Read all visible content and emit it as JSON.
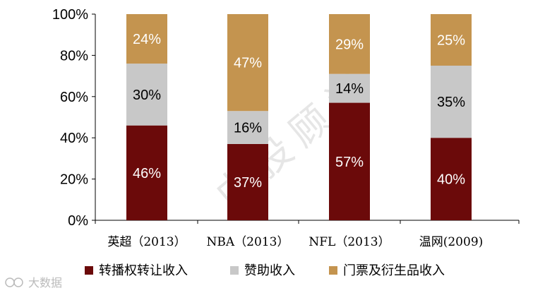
{
  "chart_data": {
    "type": "bar",
    "stacked": true,
    "categories": [
      "英超（2013）",
      "NBA（2013）",
      "NFL（2013）",
      "温网(2009)"
    ],
    "series": [
      {
        "name": "转播权转让收入",
        "color": "#6b0a0a",
        "label_color": "#ffffff",
        "values": [
          46,
          37,
          57,
          40
        ],
        "labels": [
          "46%",
          "37%",
          "57%",
          "40%"
        ]
      },
      {
        "name": "赞助收入",
        "color": "#c8c8c8",
        "label_color": "#000000",
        "values": [
          30,
          16,
          14,
          35
        ],
        "labels": [
          "30%",
          "16%",
          "14%",
          "35%"
        ]
      },
      {
        "name": "门票及衍生品收入",
        "color": "#c4944f",
        "label_color": "#ffffff",
        "values": [
          24,
          47,
          29,
          25
        ],
        "labels": [
          "24%",
          "47%",
          "29%",
          "25%"
        ]
      }
    ],
    "yticks": [
      "0%",
      "20%",
      "40%",
      "60%",
      "80%",
      "100%"
    ],
    "ylim": [
      0,
      100
    ],
    "legend_position": "bottom"
  },
  "watermark": {
    "main": "中投顾问",
    "corner": "大数据"
  }
}
